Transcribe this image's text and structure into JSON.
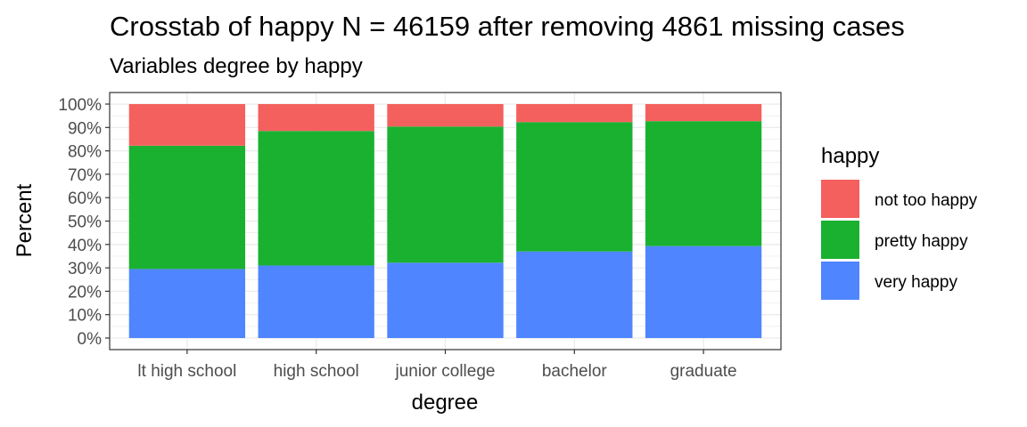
{
  "chart_data": {
    "type": "bar",
    "stacked": true,
    "percent": true,
    "title": "Crosstab of happy N = 46159 after removing 4861 missing cases",
    "subtitle": "Variables degree by happy",
    "xlabel": "degree",
    "ylabel": "Percent",
    "ylim": [
      0,
      1
    ],
    "yticks": [
      "0%",
      "10%",
      "20%",
      "30%",
      "40%",
      "50%",
      "60%",
      "70%",
      "80%",
      "90%",
      "100%"
    ],
    "categories": [
      "lt high school",
      "high school",
      "junior college",
      "bachelor",
      "graduate"
    ],
    "series": [
      {
        "name": "very happy",
        "color": "#4F86FF",
        "values": [
          0.295,
          0.31,
          0.322,
          0.37,
          0.393
        ]
      },
      {
        "name": "pretty happy",
        "color": "#1AB131",
        "values": [
          0.527,
          0.575,
          0.582,
          0.553,
          0.534
        ]
      },
      {
        "name": "not too happy",
        "color": "#F4605D",
        "values": [
          0.178,
          0.115,
          0.096,
          0.077,
          0.073
        ]
      }
    ],
    "legend": {
      "title": "happy",
      "position": "right",
      "order": [
        "not too happy",
        "pretty happy",
        "very happy"
      ]
    },
    "grid": true
  }
}
